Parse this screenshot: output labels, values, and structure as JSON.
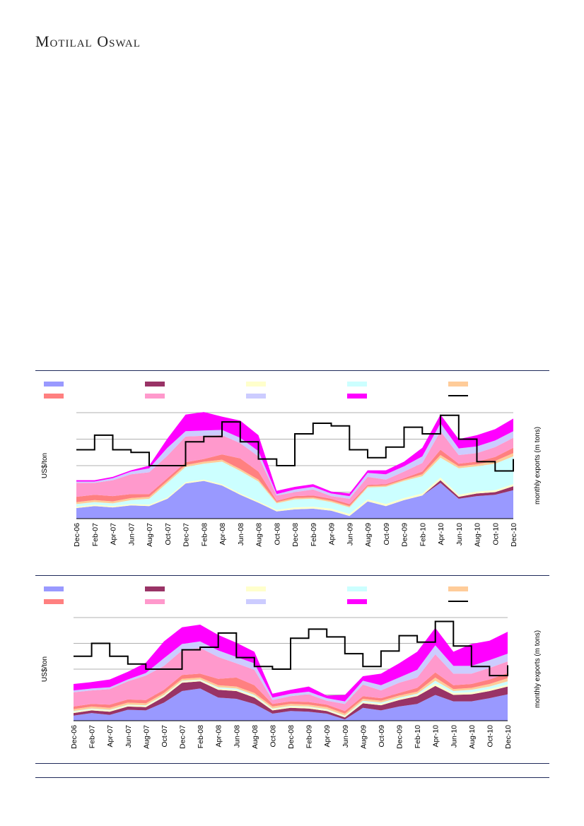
{
  "header": {
    "brand": "Motilal Oswal"
  },
  "chart_data": [
    {
      "type": "area",
      "title": "",
      "xlabel": "",
      "ylabel": "US$/ton",
      "y2label": "monthly exports (m tons)",
      "categories": [
        "Dec-06",
        "Feb-07",
        "Apr-07",
        "Jun-07",
        "Aug-07",
        "Oct-07",
        "Dec-07",
        "Feb-08",
        "Apr-08",
        "Jun-08",
        "Aug-08",
        "Oct-08",
        "Dec-08",
        "Feb-09",
        "Apr-09",
        "Jun-09",
        "Aug-09",
        "Oct-09",
        "Dec-09",
        "Feb-10",
        "Apr-10",
        "Jun-10",
        "Aug-10",
        "Oct-10",
        "Dec-10"
      ],
      "ylim": [
        0,
        800
      ],
      "y2lim": [
        0,
        8
      ],
      "legend": {
        "placement": "top",
        "entries": [
          "",
          "",
          "",
          "",
          "",
          "",
          "",
          "",
          "",
          ""
        ]
      },
      "series": [
        {
          "name": "",
          "color": "#9999ff",
          "values": [
            80,
            95,
            85,
            100,
            95,
            150,
            265,
            285,
            250,
            180,
            120,
            55,
            70,
            75,
            60,
            20,
            130,
            95,
            140,
            175,
            270,
            150,
            170,
            180,
            215
          ]
        },
        {
          "name": "",
          "color": "#993366",
          "values": [
            0,
            0,
            0,
            0,
            0,
            0,
            0,
            0,
            0,
            0,
            0,
            0,
            0,
            0,
            0,
            0,
            0,
            0,
            0,
            0,
            20,
            15,
            20,
            20,
            30
          ]
        },
        {
          "name": "",
          "color": "#ffffcc",
          "values": [
            10,
            10,
            10,
            10,
            10,
            10,
            10,
            10,
            10,
            10,
            10,
            10,
            15,
            15,
            15,
            15,
            15,
            15,
            15,
            15,
            20,
            15,
            15,
            15,
            15
          ]
        },
        {
          "name": "",
          "color": "#ccffff",
          "values": [
            20,
            20,
            20,
            30,
            45,
            110,
            115,
            120,
            170,
            170,
            150,
            50,
            60,
            60,
            50,
            50,
            90,
            130,
            130,
            130,
            150,
            200,
            190,
            200,
            210
          ]
        },
        {
          "name": "",
          "color": "#ffcc99",
          "values": [
            15,
            15,
            15,
            15,
            15,
            15,
            15,
            15,
            15,
            15,
            15,
            10,
            10,
            10,
            10,
            10,
            10,
            10,
            10,
            15,
            20,
            15,
            15,
            20,
            25
          ]
        },
        {
          "name": "",
          "color": "#ff8080",
          "values": [
            40,
            40,
            40,
            30,
            20,
            20,
            20,
            20,
            40,
            80,
            60,
            10,
            15,
            15,
            15,
            15,
            10,
            10,
            10,
            20,
            40,
            20,
            20,
            30,
            40
          ]
        },
        {
          "name": "",
          "color": "#ff99cc",
          "values": [
            105,
            90,
            120,
            150,
            165,
            170,
            195,
            175,
            145,
            115,
            115,
            40,
            30,
            45,
            20,
            40,
            60,
            35,
            50,
            65,
            140,
            65,
            65,
            75,
            75
          ]
        },
        {
          "name": "",
          "color": "#ccccff",
          "values": [
            10,
            10,
            15,
            20,
            30,
            60,
            40,
            40,
            40,
            40,
            40,
            10,
            20,
            20,
            20,
            20,
            30,
            40,
            40,
            50,
            60,
            50,
            50,
            50,
            50
          ]
        },
        {
          "name": "",
          "color": "#ff00ff",
          "values": [
            10,
            10,
            10,
            10,
            20,
            70,
            125,
            140,
            100,
            130,
            120,
            25,
            20,
            20,
            15,
            20,
            20,
            30,
            35,
            65,
            65,
            70,
            85,
            85,
            95
          ]
        }
      ],
      "line_series": {
        "name": "",
        "color": "#000000",
        "axis": "secondary",
        "values": [
          5.2,
          6.3,
          5.2,
          5.0,
          4.0,
          4.0,
          5.8,
          6.2,
          7.3,
          5.8,
          4.5,
          4.0,
          6.4,
          7.2,
          7.0,
          5.2,
          4.6,
          5.4,
          6.9,
          6.4,
          7.8,
          6.0,
          4.3,
          3.6,
          4.5
        ]
      }
    },
    {
      "type": "area",
      "title": "",
      "xlabel": "",
      "ylabel": "US$/ton",
      "y2label": "monthly exports (m tons)",
      "categories": [
        "Dec-06",
        "Feb-07",
        "Apr-07",
        "Jun-07",
        "Aug-07",
        "Oct-07",
        "Dec-07",
        "Feb-08",
        "Apr-08",
        "Jun-08",
        "Aug-08",
        "Oct-08",
        "Dec-08",
        "Feb-09",
        "Apr-09",
        "Jun-09",
        "Aug-09",
        "Oct-09",
        "Dec-09",
        "Feb-10",
        "Apr-10",
        "Jun-10",
        "Aug-10",
        "Oct-10",
        "Dec-10"
      ],
      "ylim": [
        0,
        800
      ],
      "y2lim": [
        0,
        8
      ],
      "legend": {
        "placement": "top",
        "entries": [
          "",
          "",
          "",
          "",
          "",
          "",
          "",
          "",
          "",
          ""
        ]
      },
      "series": [
        {
          "name": "",
          "color": "#9999ff",
          "values": [
            40,
            60,
            45,
            85,
            80,
            140,
            230,
            250,
            180,
            170,
            130,
            55,
            75,
            70,
            55,
            10,
            100,
            80,
            110,
            130,
            200,
            150,
            150,
            175,
            205
          ]
        },
        {
          "name": "",
          "color": "#993366",
          "values": [
            20,
            20,
            25,
            25,
            25,
            45,
            65,
            55,
            60,
            60,
            50,
            25,
            25,
            25,
            20,
            15,
            35,
            40,
            50,
            60,
            70,
            50,
            55,
            55,
            60
          ]
        },
        {
          "name": "",
          "color": "#ffffcc",
          "values": [
            10,
            10,
            10,
            10,
            10,
            10,
            10,
            10,
            10,
            10,
            10,
            10,
            10,
            10,
            10,
            10,
            10,
            10,
            10,
            10,
            20,
            15,
            15,
            15,
            15
          ]
        },
        {
          "name": "",
          "color": "#ccffff",
          "values": [
            5,
            5,
            5,
            5,
            5,
            5,
            5,
            5,
            10,
            10,
            10,
            5,
            5,
            5,
            5,
            5,
            10,
            10,
            10,
            10,
            20,
            15,
            20,
            20,
            25
          ]
        },
        {
          "name": "",
          "color": "#ffcc99",
          "values": [
            15,
            15,
            15,
            15,
            15,
            15,
            15,
            15,
            15,
            15,
            15,
            15,
            15,
            15,
            15,
            15,
            15,
            15,
            15,
            15,
            25,
            15,
            15,
            20,
            25
          ]
        },
        {
          "name": "",
          "color": "#ff8080",
          "values": [
            20,
            20,
            25,
            25,
            25,
            25,
            30,
            30,
            50,
            70,
            60,
            20,
            20,
            20,
            20,
            20,
            20,
            20,
            20,
            30,
            40,
            30,
            30,
            35,
            40
          ]
        },
        {
          "name": "",
          "color": "#ff99cc",
          "values": [
            110,
            105,
            120,
            140,
            190,
            185,
            190,
            200,
            170,
            110,
            120,
            30,
            40,
            60,
            30,
            55,
            90,
            60,
            80,
            80,
            140,
            90,
            80,
            90,
            90
          ]
        },
        {
          "name": "",
          "color": "#ccccff",
          "values": [
            15,
            15,
            15,
            15,
            20,
            60,
            50,
            50,
            50,
            50,
            50,
            20,
            20,
            20,
            20,
            20,
            30,
            40,
            40,
            60,
            70,
            60,
            60,
            60,
            60
          ]
        },
        {
          "name": "",
          "color": "#ff00ff",
          "values": [
            50,
            50,
            60,
            60,
            80,
            130,
            130,
            130,
            120,
            110,
            90,
            30,
            30,
            40,
            20,
            50,
            35,
            90,
            110,
            140,
            135,
            110,
            170,
            150,
            170
          ]
        }
      ],
      "line_series": {
        "name": "",
        "color": "#000000",
        "axis": "secondary",
        "values": [
          5.0,
          6.0,
          5.0,
          4.4,
          4.0,
          4.0,
          5.5,
          5.7,
          6.8,
          4.9,
          4.2,
          4.0,
          6.4,
          7.1,
          6.5,
          5.2,
          4.2,
          5.4,
          6.6,
          6.1,
          7.7,
          5.8,
          4.2,
          3.5,
          4.3
        ]
      }
    }
  ]
}
